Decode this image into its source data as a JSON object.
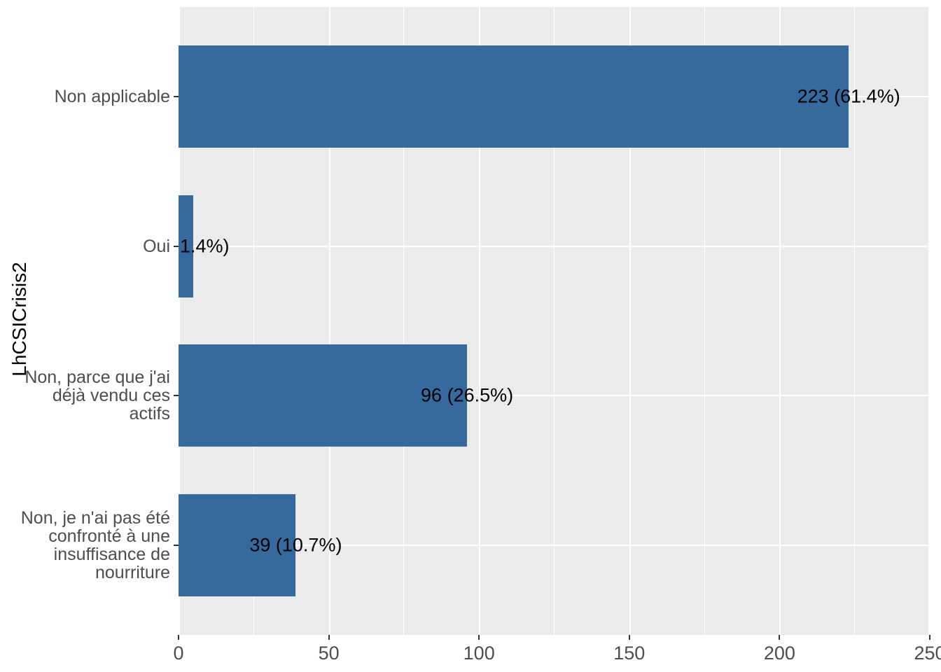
{
  "chart_data": {
    "type": "bar",
    "orientation": "horizontal",
    "title": "",
    "xlabel": "",
    "ylabel": "LhCSICrisis2",
    "xlim": [
      0,
      250
    ],
    "x_major_ticks": [
      0,
      50,
      100,
      150,
      200,
      250
    ],
    "x_minor_ticks": [
      25,
      75,
      125,
      175,
      225
    ],
    "grid": "major-and-minor-vertical, major-horizontal-at-categories",
    "legend": "none",
    "panel_bg": "#EBEBEB",
    "grid_color": "#FFFFFF",
    "bar_color": "#36699D",
    "axis_text_color": "#4D4D4D",
    "tick_mark_color": "#333333",
    "label_color": "#000000",
    "categories": [
      "Non applicable",
      "Oui",
      "Non, parce que j'ai déjà vendu ces actifs",
      "Non, je n'ai pas été confronté à une insuffisance de nourriture"
    ],
    "values": [
      223,
      5,
      96,
      39
    ],
    "bars": [
      {
        "category_lines": [
          "Non applicable"
        ],
        "value": 223,
        "label": "223 (61.4%)"
      },
      {
        "category_lines": [
          "Oui"
        ],
        "value": 5,
        "label": "1.4%)"
      },
      {
        "category_lines": [
          "Non, parce que j'ai",
          "déjà vendu ces",
          "actifs"
        ],
        "value": 96,
        "label": "96 (26.5%)"
      },
      {
        "category_lines": [
          "Non, je n'ai pas été",
          "confronté à une",
          "insuffisance de",
          "nourriture"
        ],
        "value": 39,
        "label": "39 (10.7%)"
      }
    ]
  }
}
